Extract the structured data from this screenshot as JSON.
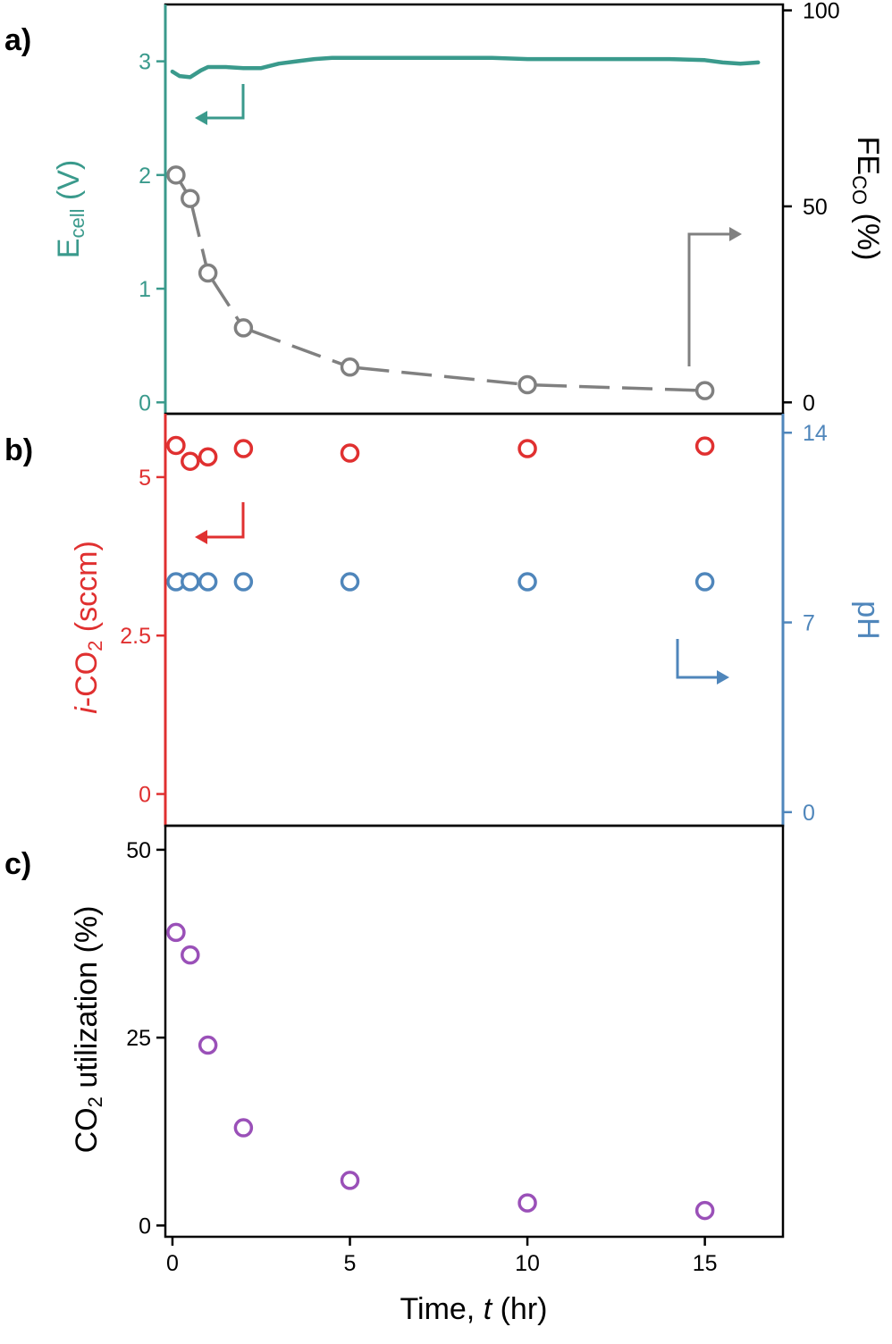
{
  "figure": {
    "colors": {
      "teal": "#3a9a8c",
      "gray": "#808080",
      "red": "#e03030",
      "blue": "#4f86bb",
      "purple": "#9a50b8",
      "black": "#000000"
    }
  },
  "chart_data": [
    {
      "panel": "a)",
      "type": "line",
      "xlim": [
        -0.2,
        17.2
      ],
      "ylabel_left": {
        "main": "E",
        "sub": "cell",
        "rest": " (V)"
      },
      "ylabel_right": {
        "main": "FE",
        "sub": "CO",
        "rest": " (%)"
      },
      "y_left_lim": [
        -0.1,
        3.5
      ],
      "y_left_ticks": [
        "0",
        "1",
        "2",
        "3"
      ],
      "y_left_tick_values": [
        0,
        1,
        2,
        3
      ],
      "y_right_lim": [
        -2.9,
        101.5
      ],
      "y_right_ticks": [
        "0",
        "50",
        "100"
      ],
      "y_right_tick_values": [
        0,
        50,
        100
      ],
      "series": [
        {
          "axis": "left",
          "style": "line",
          "color": "#3a9a8c",
          "x": [
            0,
            0.2,
            0.5,
            0.8,
            1.0,
            1.5,
            2.0,
            2.5,
            3.0,
            3.5,
            4.0,
            4.5,
            5.0,
            6.0,
            7.0,
            8.0,
            9.0,
            10.0,
            11.0,
            12.0,
            13.0,
            14.0,
            15.0,
            15.5,
            16.0,
            16.5
          ],
          "y": [
            2.91,
            2.87,
            2.86,
            2.92,
            2.95,
            2.95,
            2.94,
            2.94,
            2.98,
            3.0,
            3.02,
            3.03,
            3.03,
            3.03,
            3.03,
            3.03,
            3.03,
            3.02,
            3.02,
            3.02,
            3.02,
            3.02,
            3.01,
            2.99,
            2.98,
            2.99
          ]
        },
        {
          "axis": "right",
          "style": "dashed-line-markers",
          "color": "#808080",
          "x": [
            0.1,
            0.5,
            1,
            2,
            5,
            10,
            15
          ],
          "y": [
            58,
            52,
            33,
            19,
            9,
            4.5,
            3
          ]
        }
      ],
      "annotations": [
        {
          "type": "arrow",
          "direction": "left",
          "color": "#3a9a8c"
        },
        {
          "type": "arrow",
          "direction": "right",
          "color": "#808080"
        }
      ]
    },
    {
      "panel": "b)",
      "type": "scatter",
      "xlim": [
        -0.2,
        17.2
      ],
      "ylabel_left": {
        "italic": "i",
        "main": "-CO",
        "sub": "2",
        "rest": " (sccm)"
      },
      "ylabel_right": {
        "main": "pH"
      },
      "y_left_lim": [
        -0.5,
        6.0
      ],
      "y_left_ticks": [
        "0",
        "2.5",
        "5"
      ],
      "y_left_tick_values": [
        0,
        2.5,
        5
      ],
      "y_right_lim": [
        -0.5,
        14.7
      ],
      "y_right_ticks": [
        "0",
        "7",
        "14"
      ],
      "y_right_tick_values": [
        0,
        7,
        14
      ],
      "series": [
        {
          "axis": "left",
          "style": "markers",
          "color": "#e03030",
          "x": [
            0.1,
            0.5,
            1,
            2,
            5,
            10,
            15
          ],
          "y": [
            5.5,
            5.25,
            5.32,
            5.45,
            5.38,
            5.45,
            5.49
          ]
        },
        {
          "axis": "right",
          "style": "markers",
          "color": "#4f86bb",
          "x": [
            0.1,
            0.5,
            1,
            2,
            5,
            10,
            15
          ],
          "y": [
            8.5,
            8.5,
            8.5,
            8.5,
            8.5,
            8.5,
            8.5
          ]
        }
      ],
      "annotations": [
        {
          "type": "arrow",
          "direction": "left",
          "color": "#e03030"
        },
        {
          "type": "arrow",
          "direction": "right",
          "color": "#4f86bb"
        }
      ]
    },
    {
      "panel": "c)",
      "type": "scatter",
      "xlim": [
        -0.2,
        17.2
      ],
      "xlabel": {
        "main": "Time, ",
        "italic": "t",
        "rest": " (hr)"
      },
      "x_ticks": [
        "0",
        "5",
        "10",
        "15"
      ],
      "x_tick_values": [
        0,
        5,
        10,
        15
      ],
      "ylabel_left": {
        "main": "CO",
        "sub": "2",
        "rest": " utilization (%)"
      },
      "y_left_lim": [
        -1.5,
        53.2
      ],
      "y_left_ticks": [
        "0",
        "25",
        "50"
      ],
      "y_left_tick_values": [
        0,
        25,
        50
      ],
      "series": [
        {
          "axis": "left",
          "style": "markers",
          "color": "#9a50b8",
          "x": [
            0.1,
            0.5,
            1,
            2,
            5,
            10,
            15
          ],
          "y": [
            39,
            36,
            24,
            13,
            6,
            3,
            2
          ]
        }
      ]
    }
  ]
}
